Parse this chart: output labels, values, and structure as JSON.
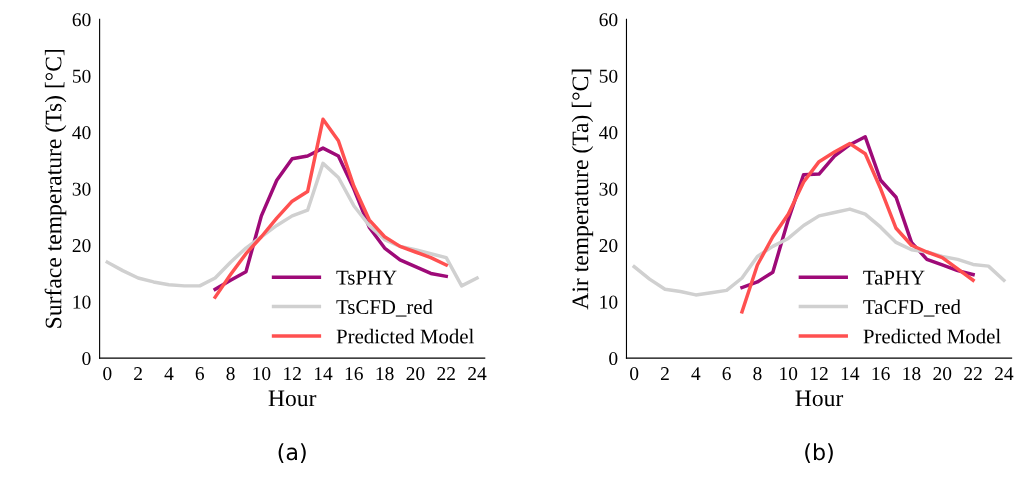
{
  "chart_data": [
    {
      "type": "line",
      "xlabel": "Hour",
      "ylabel": "Surface temperature (Ts) [°C]",
      "xlim": [
        -0.5,
        24.5
      ],
      "xticks": [
        0,
        2,
        4,
        6,
        8,
        10,
        12,
        14,
        16,
        18,
        20,
        22,
        24
      ],
      "ylim": [
        0,
        60
      ],
      "yticks": [
        0,
        10,
        20,
        30,
        40,
        50,
        60
      ],
      "grid": false,
      "legend": "bottom right",
      "annotations": [
        "(a)"
      ],
      "series": [
        {
          "name": "TsPHY",
          "color": "#9e0a78",
          "x": [
            7,
            8,
            9,
            10,
            11,
            12,
            13,
            14,
            15,
            16,
            17,
            18,
            19,
            20,
            21,
            22
          ],
          "values": [
            12.2,
            13.8,
            15.3,
            25.2,
            31.5,
            35.3,
            35.8,
            37.2,
            35.8,
            30,
            23.2,
            19.5,
            17.4,
            16.2,
            15,
            14.5
          ]
        },
        {
          "name": "TsCFD_red",
          "color": "#d0d0d0",
          "x": [
            0,
            1,
            2,
            3,
            4,
            5,
            6,
            7,
            8,
            9,
            10,
            11,
            12,
            13,
            14,
            15,
            16,
            17,
            18,
            19,
            20,
            21,
            22,
            23,
            24
          ],
          "values": [
            17,
            15.5,
            14.2,
            13.5,
            13,
            12.8,
            12.8,
            14.2,
            17,
            19.5,
            21.5,
            23.5,
            25.2,
            26.2,
            34.5,
            32,
            27,
            23.5,
            21,
            19.8,
            19.2,
            18.5,
            17.8,
            12.8,
            14.2
          ]
        },
        {
          "name": "Predicted Model",
          "color": "#ff5050",
          "x": [
            7,
            8,
            9,
            10,
            11,
            12,
            13,
            14,
            15,
            16,
            17,
            18,
            19,
            20,
            21,
            22
          ],
          "values": [
            10.8,
            14.8,
            18.5,
            21.5,
            24.8,
            27.8,
            29.5,
            42.3,
            38.5,
            30.5,
            24.5,
            21.5,
            19.8,
            18.8,
            17.8,
            16.5
          ]
        }
      ]
    },
    {
      "type": "line",
      "xlabel": "Hour",
      "ylabel": "Air temperature (Ta) [°C]",
      "xlim": [
        -0.5,
        24.5
      ],
      "xticks": [
        0,
        2,
        4,
        6,
        8,
        10,
        12,
        14,
        16,
        18,
        20,
        22,
        24
      ],
      "ylim": [
        0,
        60
      ],
      "yticks": [
        0,
        10,
        20,
        30,
        40,
        50,
        60
      ],
      "grid": false,
      "legend": "bottom right",
      "annotations": [
        "(b)"
      ],
      "series": [
        {
          "name": "TaPHY",
          "color": "#9e0a78",
          "x": [
            7,
            8,
            9,
            10,
            11,
            12,
            13,
            14,
            15,
            16,
            17,
            18,
            19,
            20,
            21,
            22
          ],
          "values": [
            12.5,
            13.5,
            15.2,
            24.5,
            32.5,
            32.6,
            35.8,
            37.8,
            39.2,
            31.5,
            28.5,
            20.5,
            17.5,
            16.5,
            15.5,
            14.8
          ]
        },
        {
          "name": "TaCFD_red",
          "color": "#d0d0d0",
          "x": [
            0,
            1,
            2,
            3,
            4,
            5,
            6,
            7,
            8,
            9,
            10,
            11,
            12,
            13,
            14,
            15,
            16,
            17,
            18,
            19,
            20,
            21,
            22,
            23,
            24
          ],
          "values": [
            16.2,
            14,
            12.2,
            11.8,
            11.2,
            11.6,
            12,
            14.2,
            18,
            19.8,
            21.2,
            23.5,
            25.2,
            25.8,
            26.4,
            25.5,
            23.2,
            20.5,
            19.2,
            18.8,
            18,
            17.5,
            16.6,
            16.3,
            13.8
          ]
        },
        {
          "name": "Predicted Model",
          "color": "#ff5050",
          "x": [
            7,
            8,
            9,
            10,
            11,
            12,
            13,
            14,
            15,
            16,
            17,
            18,
            19,
            20,
            21,
            22
          ],
          "values": [
            8.2,
            16.5,
            21.5,
            25.5,
            31.2,
            34.8,
            36.5,
            38,
            36.2,
            30,
            23,
            20,
            18.8,
            17.8,
            15.8,
            13.8
          ]
        }
      ]
    }
  ]
}
